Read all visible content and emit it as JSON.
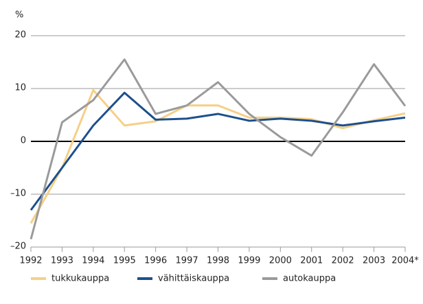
{
  "chart_data": {
    "type": "line",
    "y_label": "%",
    "categories": [
      "1992",
      "1993",
      "1994",
      "1995",
      "1996",
      "1997",
      "1998",
      "1999",
      "2000",
      "2001",
      "2002",
      "2003",
      "2004*"
    ],
    "series": [
      {
        "name": "tukkukauppa",
        "color": "#f6cf86",
        "values": [
          -15.5,
          -5,
          9.7,
          3,
          3.8,
          6.8,
          6.8,
          4.5,
          4.5,
          4.2,
          2.5,
          4,
          5.3
        ]
      },
      {
        "name": "vähittäiskauppa",
        "color": "#1d4f8c",
        "values": [
          -13,
          -5,
          3,
          9.2,
          4.1,
          4.3,
          5.2,
          3.9,
          4.3,
          3.9,
          3,
          3.8,
          4.5
        ]
      },
      {
        "name": "autokauppa",
        "color": "#9a9a9a",
        "values": [
          -18.5,
          3.6,
          7.8,
          15.5,
          5.2,
          6.8,
          11.2,
          5.2,
          0.8,
          -2.7,
          5.5,
          14.6,
          6.7
        ]
      }
    ],
    "ylim": [
      -20,
      20
    ],
    "yticks": [
      {
        "value": -20,
        "label": "–20"
      },
      {
        "value": -10,
        "label": "–10"
      },
      0,
      10,
      20
    ],
    "grid": true,
    "legend": "bottom"
  }
}
